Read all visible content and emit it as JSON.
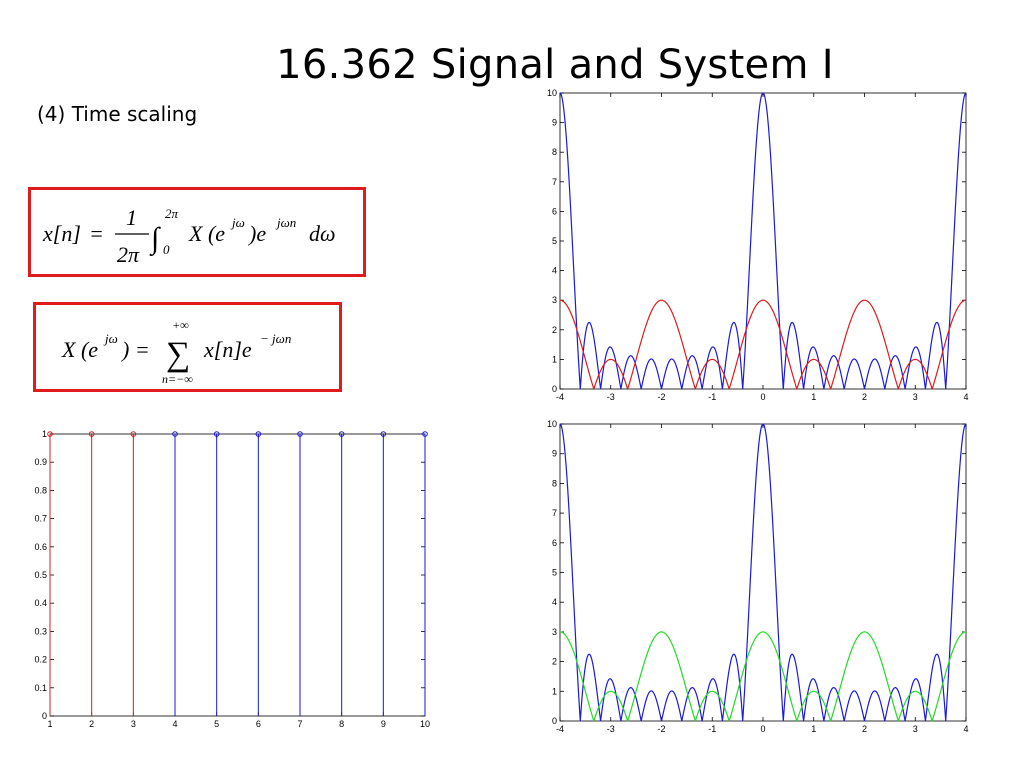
{
  "slide": {
    "title": "16.362 Signal and System I",
    "subtitle": "(4) Time scaling"
  },
  "equations": {
    "synthesis": {
      "lhs": "x[n]",
      "eq": "=",
      "frac_num": "1",
      "frac_den": "2π",
      "integral": "∫",
      "upper": "2π",
      "lower": "0",
      "body": "X (e",
      "body_sup": "jω",
      "body2": ")e",
      "body2_sup": "jωn",
      "diff": "dω"
    },
    "analysis": {
      "lhs": "X (e",
      "lhs_sup": "jω",
      "lhs2": ") =",
      "sum": "∑",
      "upper": "+∞",
      "lower": "n=−∞",
      "body": "x[n]e",
      "body_sup": "− jωn"
    }
  },
  "chart_data": [
    {
      "type": "stem",
      "xlim": [
        1,
        10
      ],
      "ylim": [
        0,
        1
      ],
      "x_ticks": [
        "1",
        "2",
        "3",
        "4",
        "5",
        "6",
        "7",
        "8",
        "9",
        "10"
      ],
      "y_ticks": [
        "0",
        "0.1",
        "0.2",
        "0.3",
        "0.4",
        "0.5",
        "0.6",
        "0.7",
        "0.8",
        "0.9",
        "1"
      ],
      "series": [
        {
          "color": "#e01b1b",
          "x": [
            1,
            2,
            3
          ],
          "values": [
            1,
            1,
            1
          ]
        },
        {
          "color": "#1a1adb",
          "x": [
            4,
            5,
            6,
            7,
            8,
            9,
            10
          ],
          "values": [
            1,
            1,
            1,
            1,
            1,
            1,
            1
          ]
        }
      ]
    },
    {
      "type": "line",
      "xlim": [
        -4,
        4
      ],
      "ylim": [
        0,
        10
      ],
      "x_ticks": [
        "-4",
        "-3",
        "-2",
        "-1",
        "0",
        "1",
        "2",
        "3",
        "4"
      ],
      "y_ticks": [
        "0",
        "1",
        "2",
        "3",
        "4",
        "5",
        "6",
        "7",
        "8",
        "9",
        "10"
      ],
      "series": [
        {
          "color": "#1a1adb",
          "function": "|sin(5πx/2)/sin(πx/4)|",
          "N": 10
        },
        {
          "color": "#e01b1b",
          "function": "|sin(3πx/2)/sin(πx/2)|",
          "N": 3
        }
      ]
    },
    {
      "type": "line",
      "xlim": [
        -4,
        4
      ],
      "ylim": [
        0,
        10
      ],
      "x_ticks": [
        "-4",
        "-3",
        "-2",
        "-1",
        "0",
        "1",
        "2",
        "3",
        "4"
      ],
      "y_ticks": [
        "0",
        "1",
        "2",
        "3",
        "4",
        "5",
        "6",
        "7",
        "8",
        "9",
        "10"
      ],
      "series": [
        {
          "color": "#1a1adb",
          "function": "|sin(5πx/2)/sin(πx/4)|",
          "N": 10
        },
        {
          "color": "#22dd22",
          "function": "|sin(3πx/2)/sin(πx/2)|",
          "N": 3
        }
      ]
    }
  ]
}
